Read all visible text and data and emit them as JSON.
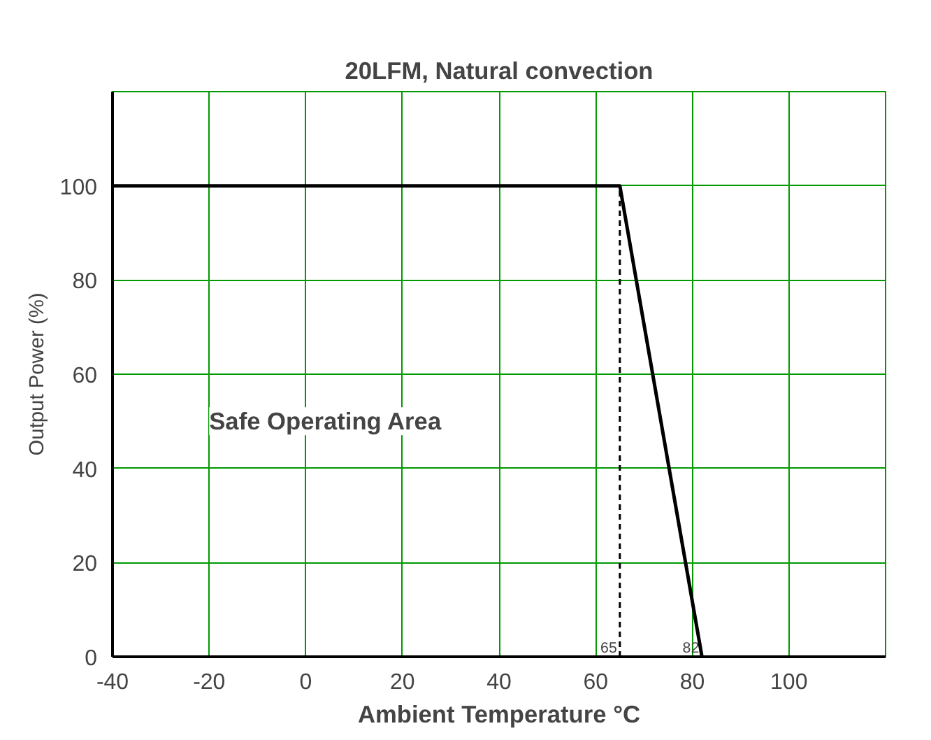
{
  "chart_data": {
    "type": "line",
    "title": "20LFM, Natural convection",
    "xlabel": "Ambient Temperature °C",
    "ylabel": "Output Power (%)",
    "xlim": [
      -40,
      120
    ],
    "ylim": [
      0,
      120
    ],
    "xticks": [
      -40,
      -20,
      0,
      20,
      40,
      60,
      80,
      100,
      {
        "value": 120,
        "label": null
      }
    ],
    "yticks": [
      0,
      20,
      40,
      60,
      80,
      100,
      {
        "value": 120,
        "label": null
      }
    ],
    "grid": true,
    "series": [
      {
        "x": [
          -40,
          65,
          82
        ],
        "values": [
          100,
          100,
          0
        ],
        "color": "#000000",
        "line_style": "solid"
      },
      {
        "x": [
          65,
          65
        ],
        "values": [
          0,
          100
        ],
        "color": "#000000",
        "line_style": "dashed"
      }
    ],
    "annotations": [
      "Safe Operating Area",
      {
        "text": "65",
        "x": 65,
        "y": 0
      },
      {
        "text": "82",
        "x": 82,
        "y": 0
      }
    ]
  }
}
